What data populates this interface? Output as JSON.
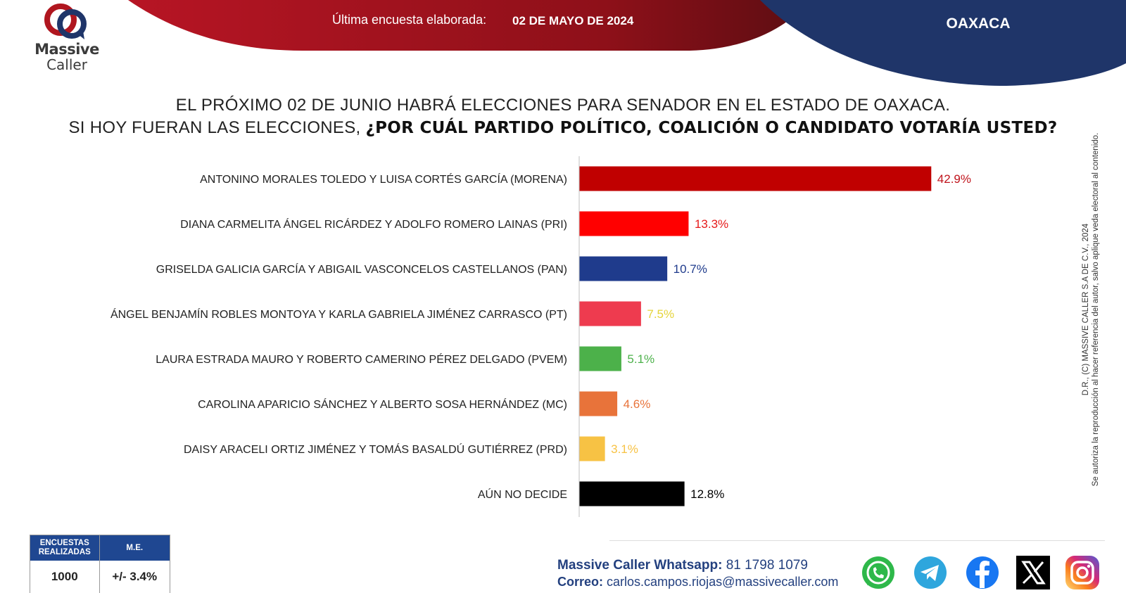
{
  "header": {
    "logo_text_1": "Massive",
    "logo_text_2": "Caller",
    "survey_label": "Última encuesta elaborada:",
    "survey_date": "02 DE MAYO DE 2024",
    "region": "OAXACA"
  },
  "question": {
    "line1": "EL PRÓXIMO 02 DE JUNIO HABRÁ ELECCIONES PARA SENADOR EN EL ESTADO DE OAXACA.",
    "line2_prefix": "SI HOY FUERAN LAS ELECCIONES, ",
    "line2_bold": "¿POR CUÁL PARTIDO POLÍTICO, COALICIÓN O CANDIDATO VOTARÍA USTED?"
  },
  "chart_data": {
    "type": "bar",
    "orientation": "horizontal",
    "categories": [
      "ANTONINO MORALES TOLEDO Y LUISA CORTÉS GARCÍA (MORENA)",
      "DIANA CARMELITA ÁNGEL RICÁRDEZ Y ADOLFO ROMERO LAINAS (PRI)",
      "GRISELDA GALICIA GARCÍA Y ABIGAIL VASCONCELOS CASTELLANOS (PAN)",
      "ÁNGEL BENJAMÍN ROBLES MONTOYA Y KARLA GABRIELA JIMÉNEZ CARRASCO (PT)",
      "LAURA ESTRADA MAURO Y ROBERTO CAMERINO PÉREZ DELGADO (PVEM)",
      "CAROLINA APARICIO SÁNCHEZ Y ALBERTO SOSA HERNÁNDEZ (MC)",
      "DAISY ARACELI ORTIZ JIMÉNEZ Y TOMÁS BASALDÚ GUTIÉRREZ (PRD)",
      "AÚN NO DECIDE"
    ],
    "values": [
      42.9,
      13.3,
      10.7,
      7.5,
      5.1,
      4.6,
      3.1,
      12.8
    ],
    "value_labels": [
      "42.9%",
      "13.3%",
      "10.7%",
      "7.5%",
      "5.1%",
      "4.6%",
      "3.1%",
      "12.8%"
    ],
    "bar_colors": [
      "#c00000",
      "#ff0000",
      "#1f3b8c",
      "#ee3b4f",
      "#4cb14a",
      "#e8733a",
      "#f7c244",
      "#000000"
    ],
    "label_colors": [
      "#c0141c",
      "#e61a1a",
      "#1f3b8c",
      "#e5d43a",
      "#4cb14a",
      "#e8733a",
      "#f7c244",
      "#000000"
    ],
    "xlim": [
      0,
      50
    ],
    "grid": false
  },
  "side_note": {
    "line1": "D.R., (C) MASSIVE CALLER S.A DE C.V., 2024",
    "line2": "Se autoriza la reproducción al hacer referencia del autor, salvo aplique veda electoral al contenido."
  },
  "stats": {
    "col1_header": "ENCUESTAS REALIZADAS",
    "col2_header": "M.E.",
    "col1_value": "1000",
    "col2_value": "+/- 3.4%"
  },
  "contact": {
    "whatsapp_label": "Massive Caller Whatsapp:",
    "whatsapp_value": " 81 1798 1079",
    "email_label": "Correo:",
    "email_value": " carlos.campos.riojas@massivecaller.com"
  },
  "social_icons": [
    "whatsapp-icon",
    "telegram-icon",
    "facebook-icon",
    "x-icon",
    "instagram-icon"
  ],
  "colors": {
    "header_red": "#a8141f",
    "header_navy": "#1f3569",
    "stats_blue": "#1f4791"
  }
}
